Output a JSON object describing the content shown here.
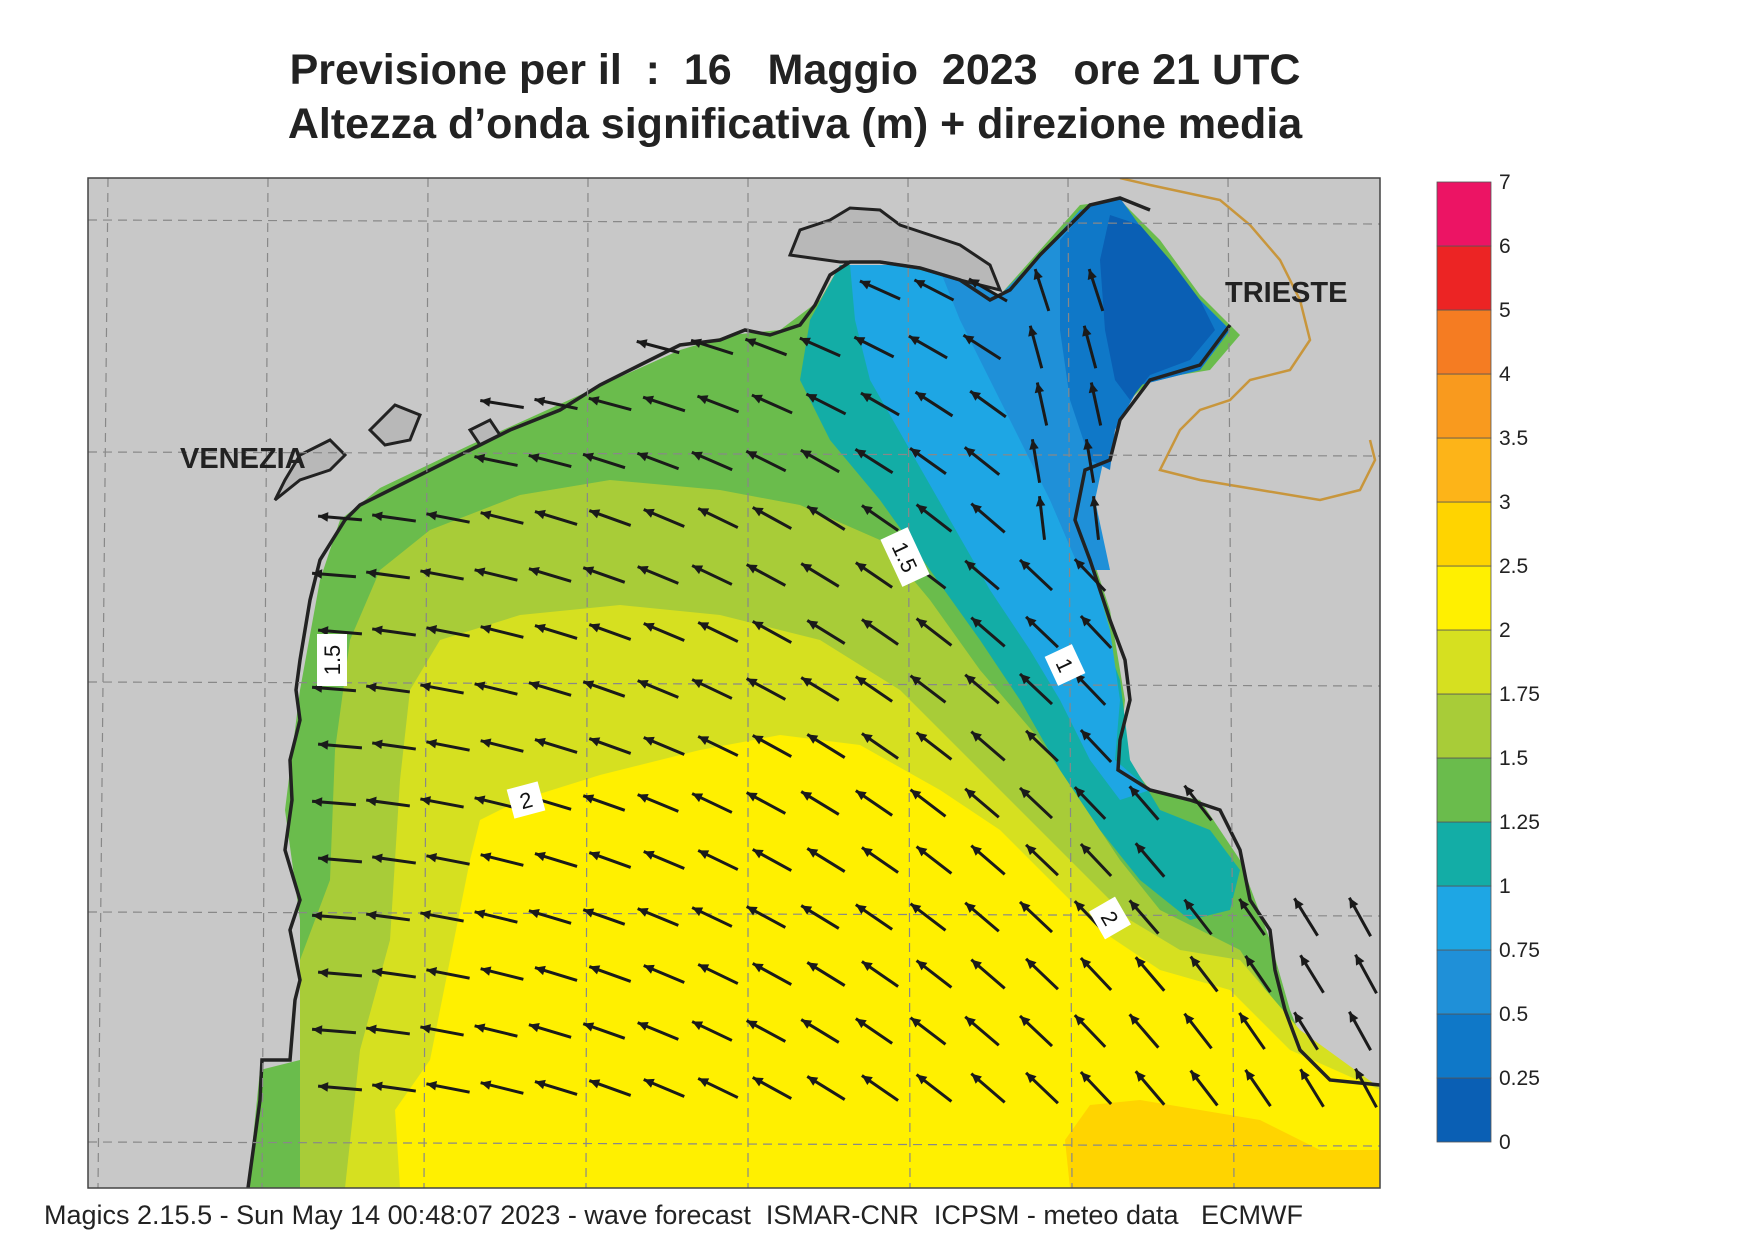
{
  "title_line1": "Previsione per il  :  16   Maggio  2023   ore 21 UTC",
  "title_line2": "Altezza d’onda significativa (m) + direzione media",
  "footer": "Magics 2.15.5 - Sun May 14 00:48:07 2023 - wave forecast  ISMAR-CNR  ICPSM - meteo data   ECMWF",
  "cities": {
    "venezia": "VENEZIA",
    "trieste": "TRIESTE"
  },
  "contour_labels": [
    "1.5",
    "1.5",
    "1",
    "2",
    "2"
  ],
  "colorbar": {
    "levels": [
      "0",
      "0.25",
      "0.5",
      "0.75",
      "1",
      "1.25",
      "1.5",
      "1.75",
      "2",
      "2.5",
      "3",
      "3.5",
      "4",
      "5",
      "6",
      "7"
    ],
    "colors": [
      "#0a5fb4",
      "#0f78c8",
      "#1f90d8",
      "#1ea6e4",
      "#13ada6",
      "#6abc4c",
      "#a8cc38",
      "#d6e020",
      "#fff000",
      "#ffd400",
      "#fdb418",
      "#f99a1e",
      "#f57c22",
      "#ec2424",
      "#ec1464"
    ]
  },
  "colors": {
    "land": "#c8c8c8",
    "coastline": "#222222",
    "border": "#c8963c",
    "arrow": "#1a1a1a"
  }
}
